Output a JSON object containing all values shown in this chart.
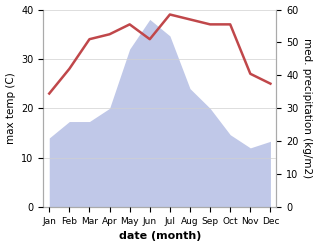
{
  "months": [
    "Jan",
    "Feb",
    "Mar",
    "Apr",
    "May",
    "Jun",
    "Jul",
    "Aug",
    "Sep",
    "Oct",
    "Nov",
    "Dec"
  ],
  "temperature": [
    23,
    28,
    34,
    35,
    37,
    34,
    39,
    38,
    37,
    37,
    27,
    25
  ],
  "precipitation": [
    21,
    26,
    26,
    30,
    48,
    57,
    52,
    36,
    30,
    22,
    18,
    20
  ],
  "temp_color": "#c0474a",
  "precip_fill_color": "#c0c8e8",
  "left_ylim": [
    0,
    40
  ],
  "right_ylim": [
    0,
    60
  ],
  "left_ylabel": "max temp (C)",
  "right_ylabel": "med. precipitation (kg/m2)",
  "xlabel": "date (month)",
  "bg_color": "#ffffff",
  "grid_color": "#d0d0d0"
}
